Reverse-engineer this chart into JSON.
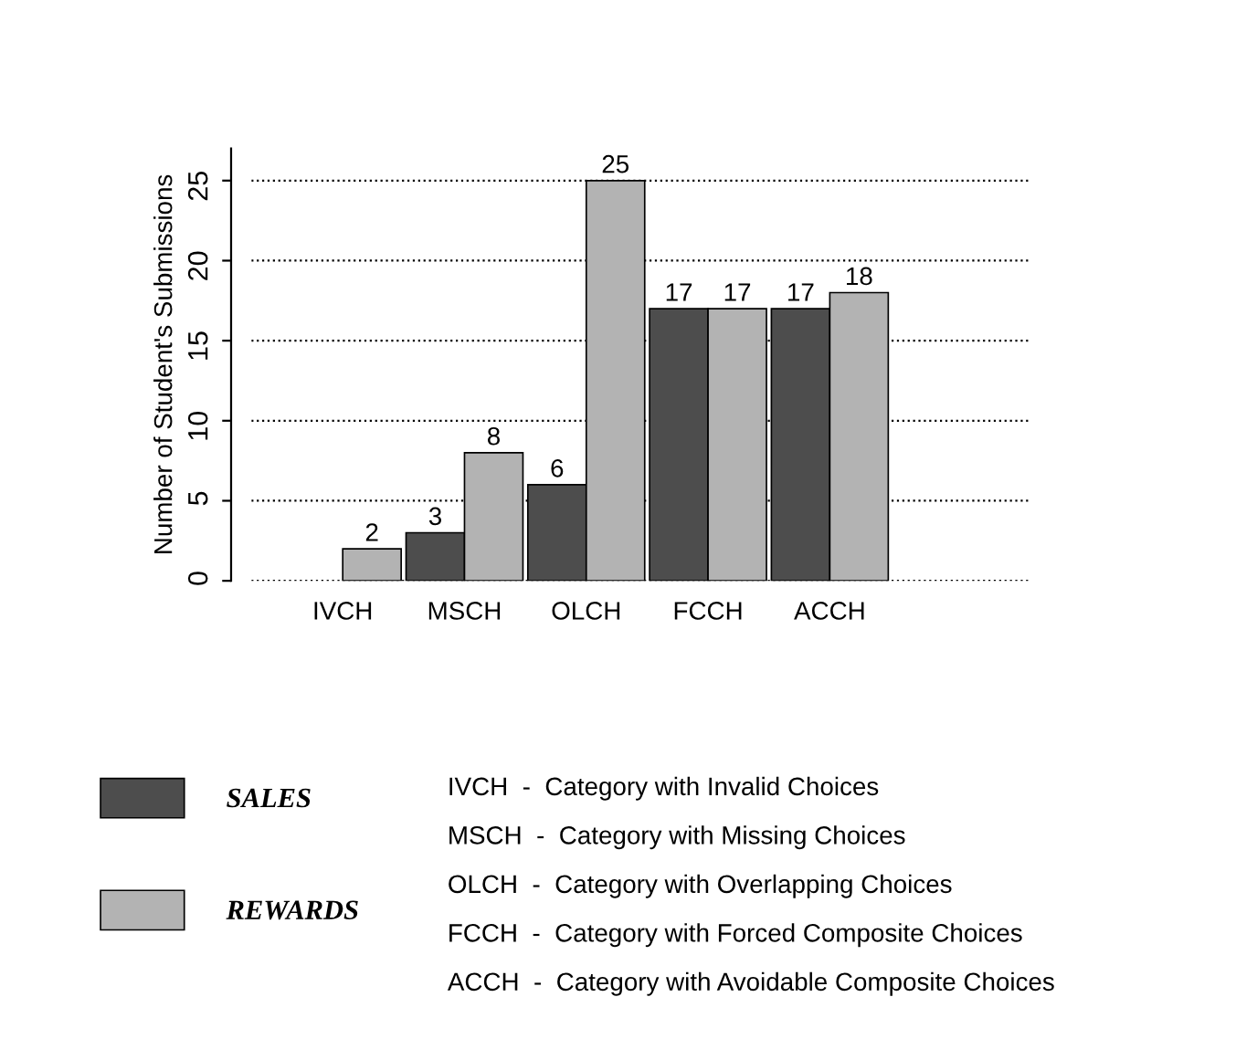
{
  "chart_data": {
    "type": "bar",
    "ylabel": "Number of Student's Submissions",
    "categories": [
      "IVCH",
      "MSCH",
      "OLCH",
      "FCCH",
      "ACCH"
    ],
    "series": [
      {
        "name": "SALES",
        "color": "#4d4d4d",
        "values": [
          null,
          3,
          6,
          17,
          17
        ],
        "value_labels": [
          null,
          "3",
          "6",
          "17",
          "17"
        ]
      },
      {
        "name": "REWARDS",
        "color": "#b3b3b3",
        "values": [
          2,
          8,
          25,
          17,
          18
        ],
        "value_labels": [
          "2",
          "8",
          "25",
          "17",
          "18"
        ]
      }
    ],
    "ylim": [
      0,
      27
    ],
    "yticks": [
      0,
      5,
      10,
      15,
      20,
      25
    ],
    "grid": "y",
    "legend": "bottom left",
    "annotations": [
      "IVCH  -  Category with Invalid Choices",
      "MSCH  -  Category with Missing Choices",
      "OLCH  -  Category with Overlapping Choices",
      "FCCH  -  Category with Forced Composite Choices",
      "ACCH  -  Category with Avoidable Composite Choices"
    ]
  }
}
